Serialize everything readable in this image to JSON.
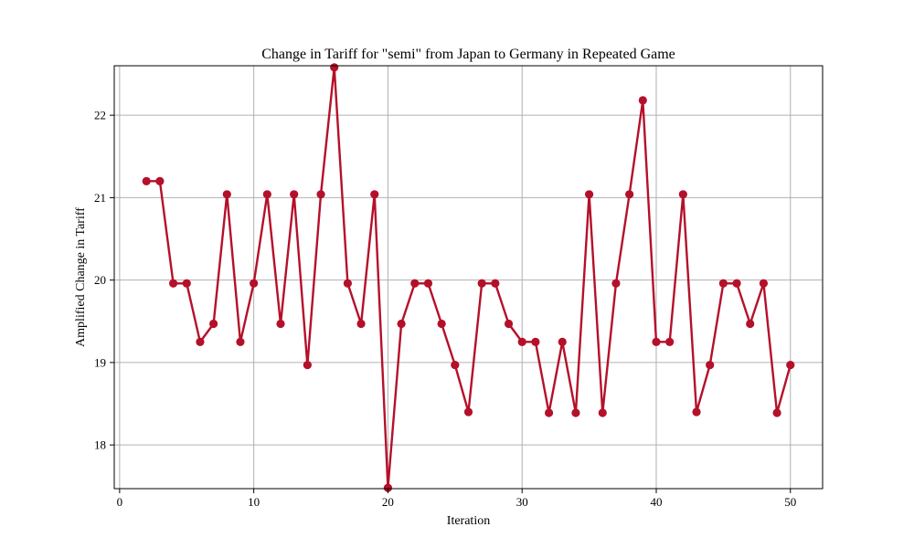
{
  "chart_data": {
    "type": "line",
    "title": "Change in Tariff for \"semi\" from Japan to Germany in Repeated Game",
    "xlabel": "Iteration",
    "ylabel": "Amplified Change in Tariff",
    "xlim": [
      -0.4,
      52.4
    ],
    "ylim": [
      17.47,
      22.6
    ],
    "xticks": [
      0,
      10,
      20,
      30,
      40,
      50
    ],
    "yticks": [
      18,
      19,
      20,
      21,
      22
    ],
    "grid": true,
    "color": "#b5102a",
    "series": [
      {
        "x": [
          2,
          3,
          4,
          5,
          6,
          7,
          8,
          9,
          10,
          11,
          12,
          13,
          14,
          15,
          16,
          17,
          18,
          19,
          20,
          21,
          22,
          23,
          24,
          25,
          26,
          27,
          28,
          29,
          30,
          31,
          32,
          33,
          34,
          35,
          36,
          37,
          38,
          39,
          40,
          41,
          42,
          43,
          44,
          45,
          46,
          47,
          48,
          49,
          50
        ],
        "values": [
          21.2,
          21.2,
          19.96,
          19.96,
          19.25,
          19.47,
          21.04,
          19.25,
          19.96,
          21.04,
          19.47,
          21.04,
          18.97,
          21.04,
          22.58,
          19.96,
          19.47,
          21.04,
          17.48,
          19.47,
          19.96,
          19.96,
          19.47,
          18.97,
          18.4,
          19.96,
          19.96,
          19.47,
          19.25,
          19.25,
          18.39,
          19.25,
          18.39,
          21.04,
          18.39,
          19.96,
          21.04,
          22.18,
          19.25,
          19.25,
          21.04,
          18.4,
          18.97,
          19.96,
          19.96,
          19.47,
          19.96,
          18.39,
          18.97
        ]
      }
    ]
  }
}
